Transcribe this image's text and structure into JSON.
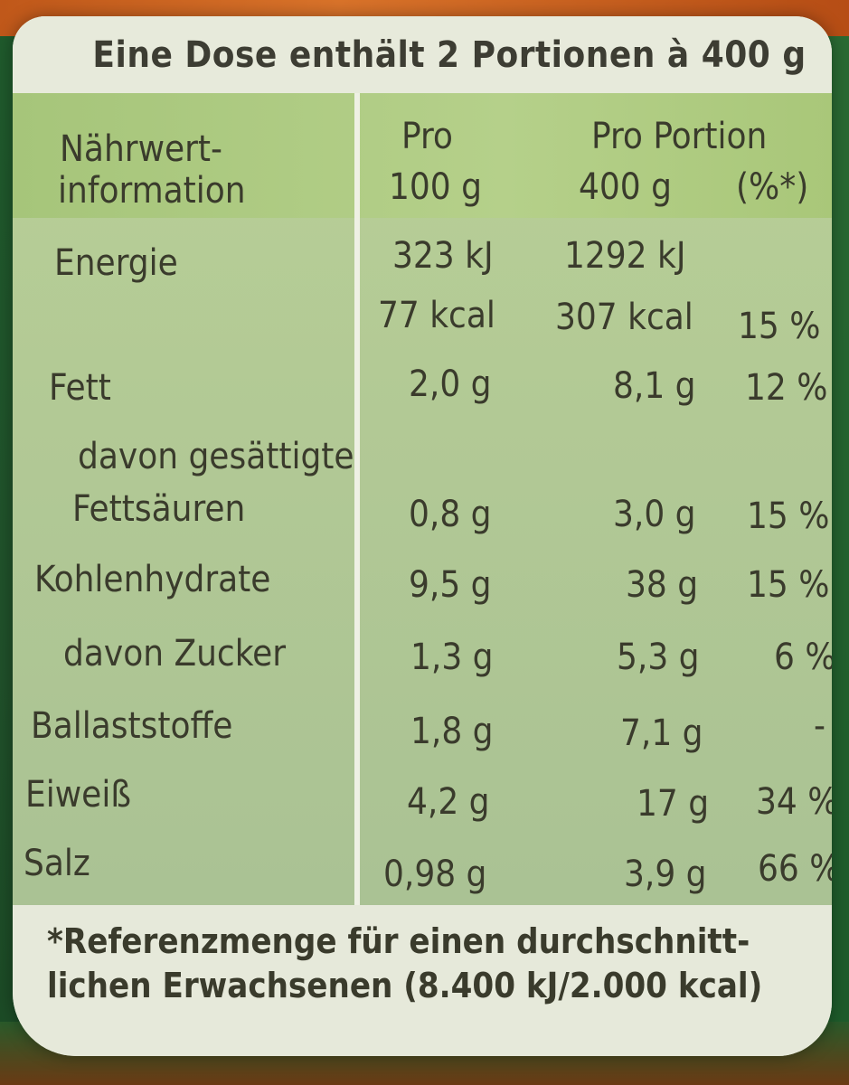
{
  "serving_line": "Eine Dose enthält 2 Portionen à 400 g",
  "header": {
    "col0_line1": "Nährwert-",
    "col0_line2": "information",
    "col1_line1": "Pro",
    "col1_line2": "100 g",
    "col2_line1": "Pro Portion",
    "col2_line2": "400 g",
    "col3_line2": "(%*)"
  },
  "rows": [
    {
      "label": "Energie",
      "per100": "323 kJ",
      "perPortion": "1292 kJ",
      "pct": ""
    },
    {
      "label": "",
      "per100": "77 kcal",
      "perPortion": "307 kcal",
      "pct": "15 %"
    },
    {
      "label": "Fett",
      "per100": "2,0 g",
      "perPortion": "8,1 g",
      "pct": "12 %"
    },
    {
      "label": "davon gesättigte",
      "per100": "",
      "perPortion": "",
      "pct": ""
    },
    {
      "label": "Fettsäuren",
      "per100": "0,8 g",
      "perPortion": "3,0 g",
      "pct": "15 %"
    },
    {
      "label": "Kohlenhydrate",
      "per100": "9,5 g",
      "perPortion": "38 g",
      "pct": "15 %"
    },
    {
      "label": "davon Zucker",
      "per100": "1,3 g",
      "perPortion": "5,3 g",
      "pct": "6 %"
    },
    {
      "label": "Ballaststoffe",
      "per100": "1,8 g",
      "perPortion": "7,1 g",
      "pct": "-"
    },
    {
      "label": "Eiweiß",
      "per100": "4,2 g",
      "perPortion": "17 g",
      "pct": "34 %"
    },
    {
      "label": "Salz",
      "per100": "0,98 g",
      "perPortion": "3,9 g",
      "pct": "66 %"
    }
  ],
  "footnote_line1": "*Referenzmenge für einen durchschnitt-",
  "footnote_line2": "lichen Erwachsenen (8.400 kJ/2.000 kcal)"
}
